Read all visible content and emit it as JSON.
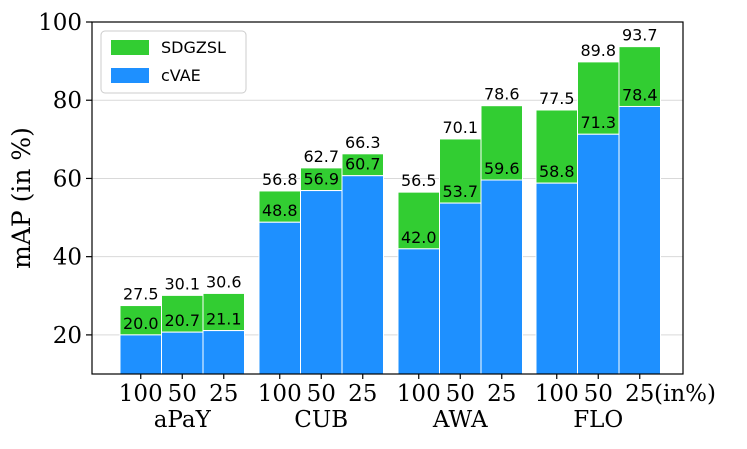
{
  "chart_data": {
    "type": "bar",
    "ylabel": "mAP (in %)",
    "ylim": [
      10,
      100
    ],
    "yticks": [
      20,
      40,
      60,
      80,
      100
    ],
    "grid": "horizontal",
    "legend_position": "top-left",
    "groups": [
      "aPaY",
      "CUB",
      "AWA",
      "FLO"
    ],
    "bar_labels": [
      "100",
      "50",
      "25"
    ],
    "x_unit_label": "(in%)",
    "series": [
      {
        "name": "cVAE",
        "color": "#1E90FF",
        "values": [
          20.0,
          20.7,
          21.1,
          48.8,
          56.9,
          60.7,
          42.0,
          53.7,
          59.6,
          58.8,
          71.3,
          78.4
        ]
      },
      {
        "name": "SDGZSL",
        "color": "#32CD32",
        "values": [
          27.5,
          30.1,
          30.6,
          56.8,
          62.7,
          66.3,
          56.5,
          70.1,
          78.6,
          77.5,
          89.8,
          93.7
        ]
      }
    ],
    "cvae_labels": [
      "20.0",
      "20.7",
      "21.1",
      "48.8",
      "56.9",
      "60.7",
      "42.0",
      "53.7",
      "59.6",
      "58.8",
      "71.3",
      "78.4"
    ],
    "sdgzsl_labels": [
      "27.5",
      "30.1",
      "30.6",
      "56.8",
      "62.7",
      "66.3",
      "56.5",
      "70.1",
      "78.6",
      "77.5",
      "89.8",
      "93.7"
    ]
  }
}
